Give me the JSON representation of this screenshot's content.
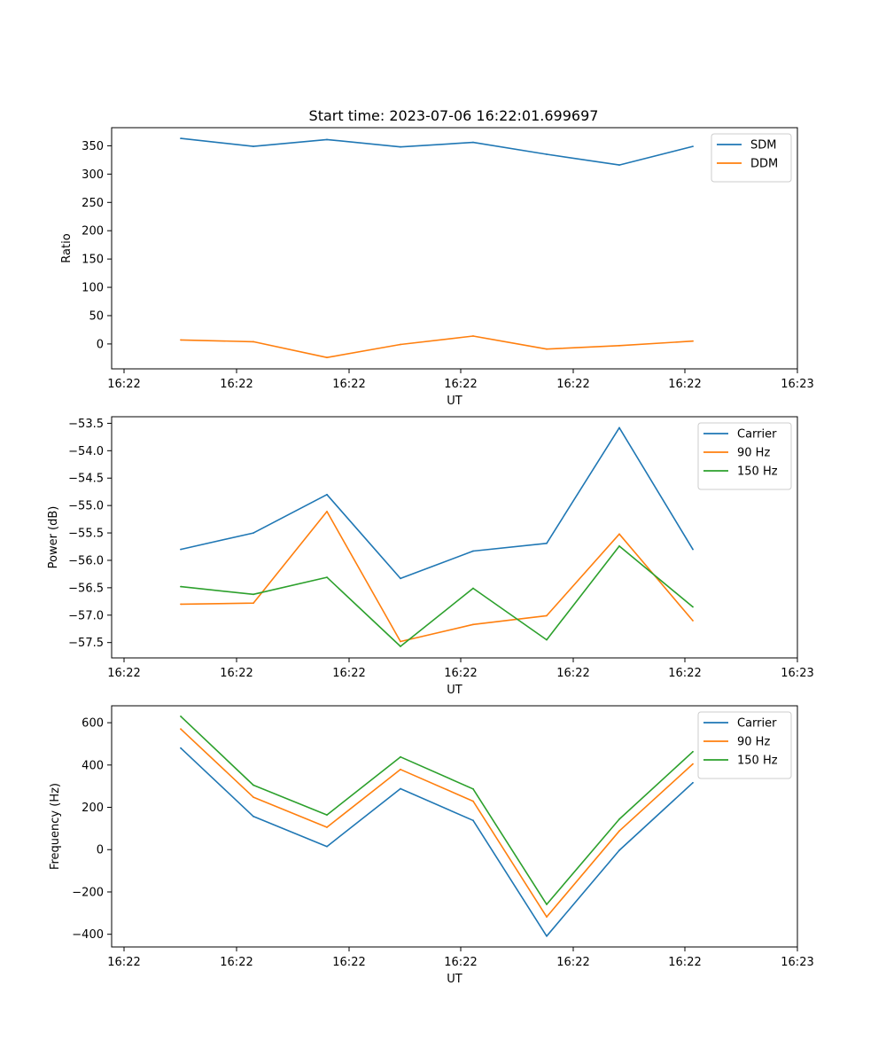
{
  "figure_title": "Start time: 2023-07-06 16:22:01.699697",
  "colors": {
    "blue": "#1f77b4",
    "orange": "#ff7f0e",
    "green": "#2ca02c"
  },
  "chart_data": [
    {
      "type": "line",
      "xlabel": "UT",
      "ylabel": "Ratio",
      "x_ticks": [
        "16:22",
        "16:22",
        "16:22",
        "16:22",
        "16:22",
        "16:22",
        "16:23"
      ],
      "y_ticks": [
        0,
        50,
        100,
        150,
        200,
        250,
        300,
        350
      ],
      "ylim": [
        -44,
        382
      ],
      "legend_position": "top-right",
      "series": [
        {
          "name": "SDM",
          "color": "#1f77b4",
          "values": [
            363,
            349,
            361,
            348,
            356,
            335,
            316,
            349
          ]
        },
        {
          "name": "DDM",
          "color": "#ff7f0e",
          "values": [
            7,
            4,
            -24,
            -1,
            14,
            -9,
            -3,
            5
          ]
        }
      ]
    },
    {
      "type": "line",
      "xlabel": "UT",
      "ylabel": "Power (dB)",
      "x_ticks": [
        "16:22",
        "16:22",
        "16:22",
        "16:22",
        "16:22",
        "16:22",
        "16:23"
      ],
      "y_ticks": [
        -53.5,
        -54.0,
        -54.5,
        -55.0,
        -55.5,
        -56.0,
        -56.5,
        -57.0,
        -57.5
      ],
      "ylim": [
        -57.78,
        -53.38
      ],
      "legend_position": "top-right",
      "series": [
        {
          "name": "Carrier",
          "color": "#1f77b4",
          "values": [
            -55.8,
            -55.5,
            -54.8,
            -56.33,
            -55.83,
            -55.69,
            -53.58,
            -55.8
          ]
        },
        {
          "name": "90 Hz",
          "color": "#ff7f0e",
          "values": [
            -56.8,
            -56.78,
            -55.11,
            -57.48,
            -57.17,
            -57.01,
            -55.52,
            -57.1
          ]
        },
        {
          "name": "150 Hz",
          "color": "#2ca02c",
          "values": [
            -56.48,
            -56.62,
            -56.31,
            -57.57,
            -56.51,
            -57.45,
            -55.74,
            -56.85
          ]
        }
      ]
    },
    {
      "type": "line",
      "xlabel": "UT",
      "ylabel": "Frequency (Hz)",
      "x_ticks": [
        "16:22",
        "16:22",
        "16:22",
        "16:22",
        "16:22",
        "16:22",
        "16:23"
      ],
      "y_ticks": [
        -400,
        -200,
        0,
        200,
        400,
        600
      ],
      "ylim": [
        -460,
        680
      ],
      "legend_position": "top-right",
      "series": [
        {
          "name": "Carrier",
          "color": "#1f77b4",
          "values": [
            480,
            157,
            15,
            288,
            138,
            -409,
            -3,
            316
          ]
        },
        {
          "name": "90 Hz",
          "color": "#ff7f0e",
          "values": [
            570,
            248,
            106,
            379,
            229,
            -318,
            88,
            405
          ]
        },
        {
          "name": "150 Hz",
          "color": "#2ca02c",
          "values": [
            630,
            305,
            164,
            438,
            287,
            -259,
            144,
            463
          ]
        }
      ]
    }
  ]
}
